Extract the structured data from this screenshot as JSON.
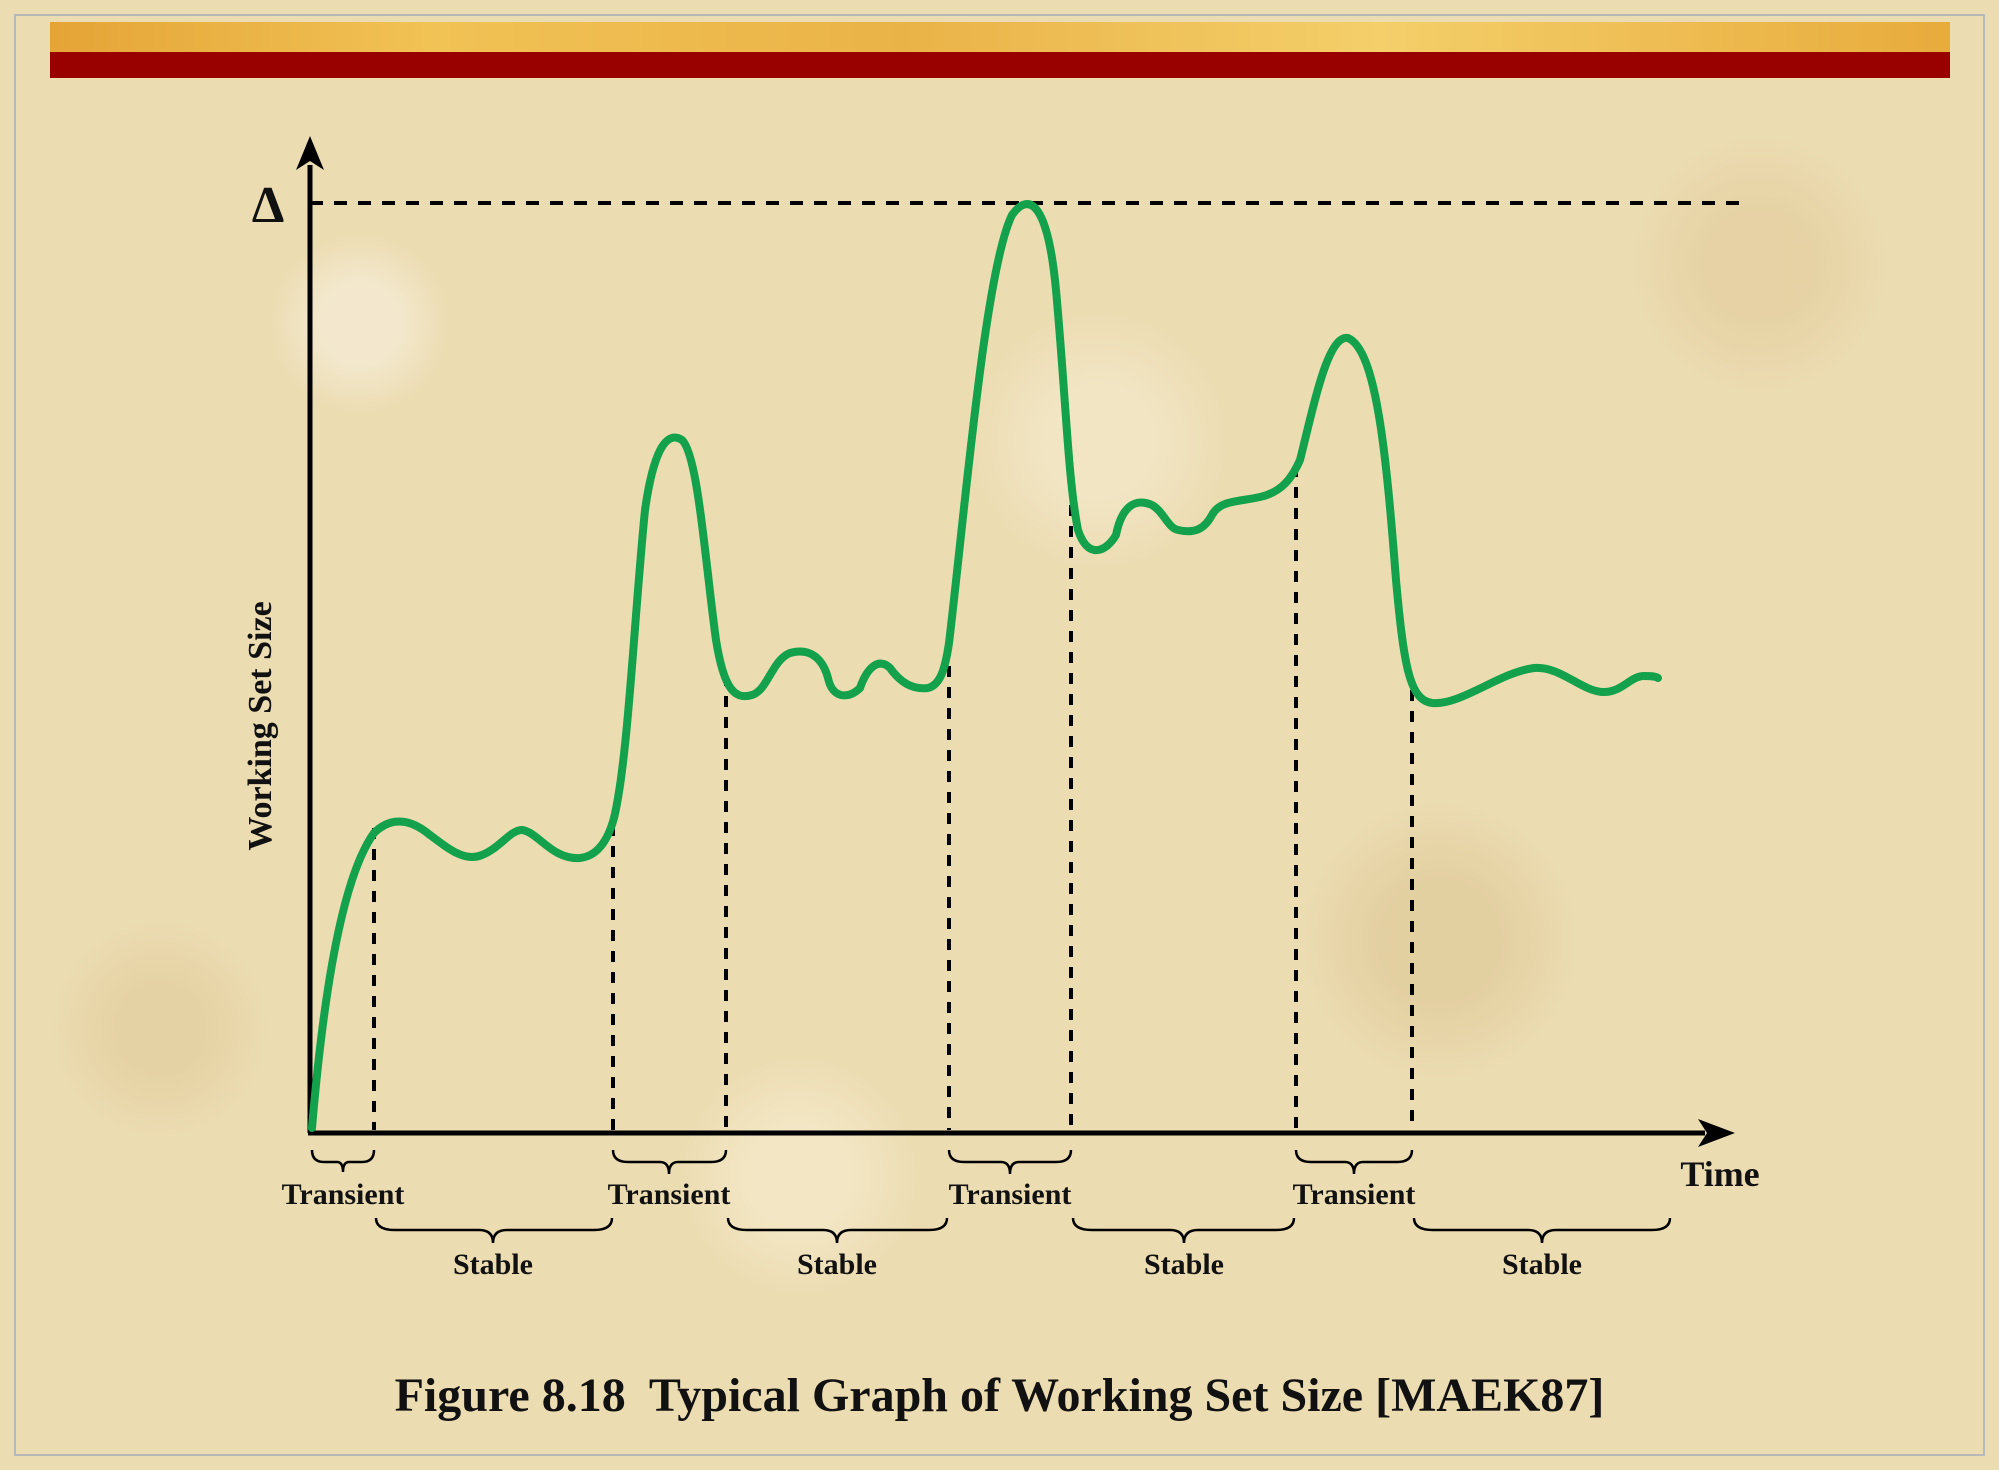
{
  "caption": "Figure 8.18  Typical Graph of Working Set Size [MAEK87]",
  "axes": {
    "y_label": "Working Set Size",
    "x_label": "Time",
    "delta_symbol": "Δ"
  },
  "phases": [
    {
      "label": "Transient"
    },
    {
      "label": "Stable"
    },
    {
      "label": "Transient"
    },
    {
      "label": "Stable"
    },
    {
      "label": "Transient"
    },
    {
      "label": "Stable"
    },
    {
      "label": "Transient"
    },
    {
      "label": "Stable"
    }
  ],
  "colors": {
    "curve": "#13a14b",
    "axis": "#000000",
    "band_red": "#990000",
    "band_gold": "#efbb4e"
  }
}
